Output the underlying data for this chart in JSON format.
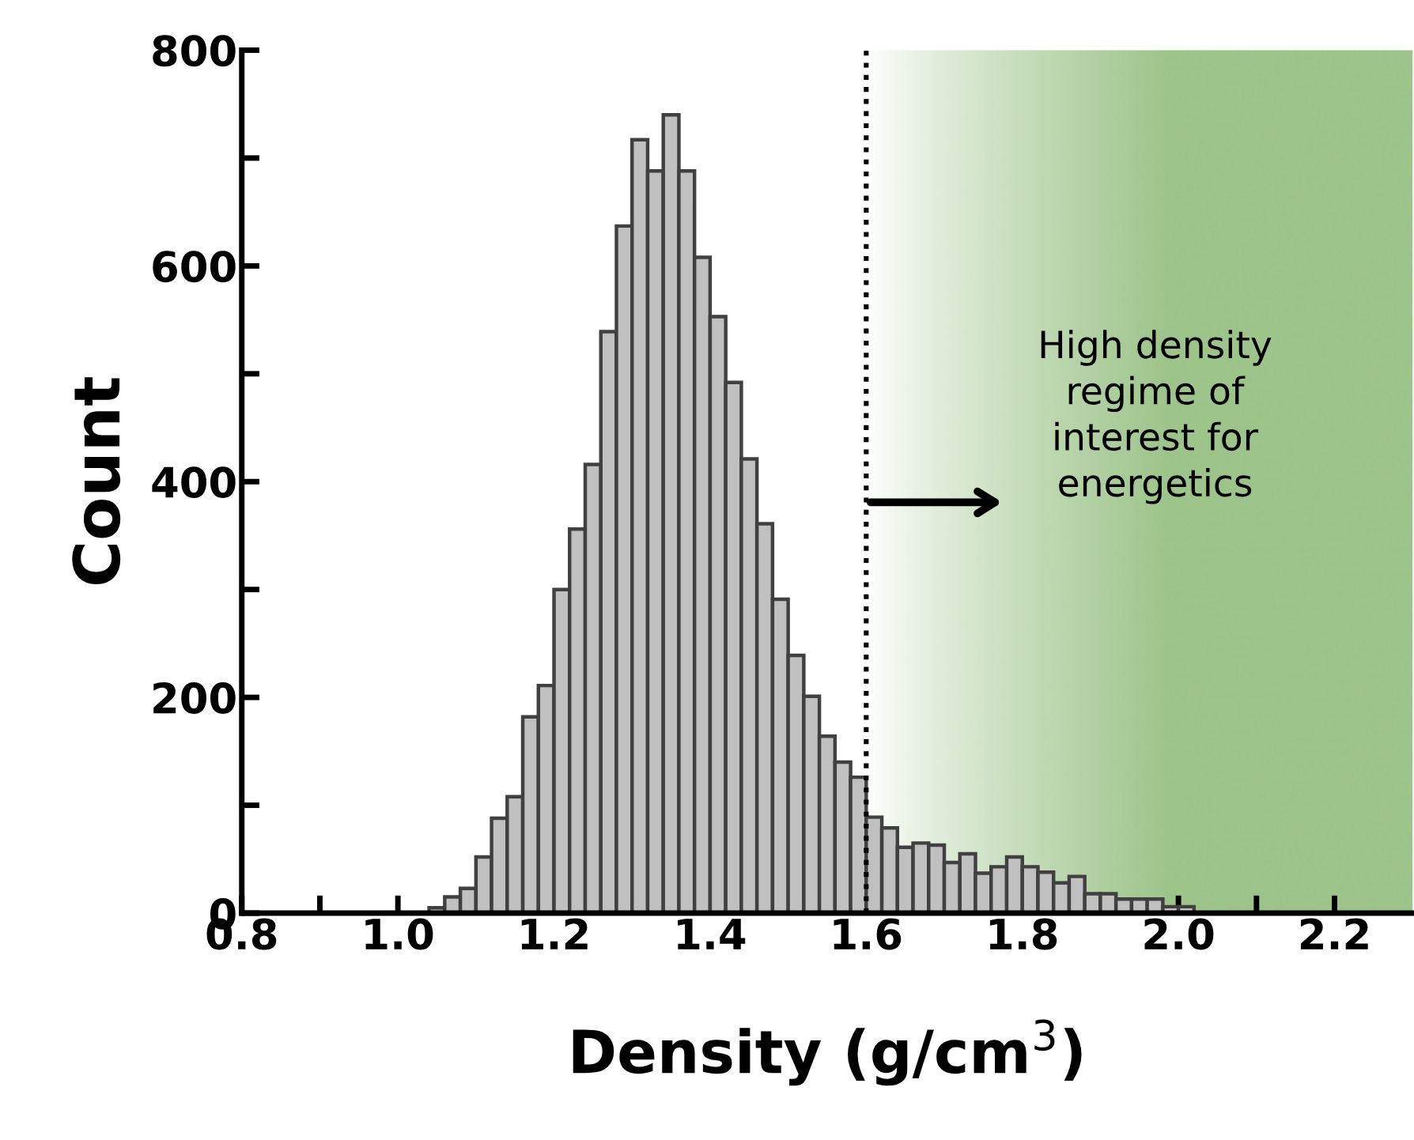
{
  "chart_data": {
    "type": "histogram",
    "xlabel": "Density (g/cm$^{3}$)",
    "ylabel": "Count",
    "bins": [
      1.04,
      1.06,
      1.08,
      1.1,
      1.12,
      1.14,
      1.16,
      1.18,
      1.2,
      1.22,
      1.24,
      1.26,
      1.28,
      1.3,
      1.32,
      1.34,
      1.36,
      1.38,
      1.4,
      1.42,
      1.44,
      1.46,
      1.48,
      1.5,
      1.52,
      1.54,
      1.56,
      1.58,
      1.6,
      1.62,
      1.64,
      1.66,
      1.68,
      1.7,
      1.72,
      1.74,
      1.76,
      1.78,
      1.8,
      1.82,
      1.84,
      1.86,
      1.88,
      1.9,
      1.92,
      1.94,
      1.96,
      1.98,
      2.0,
      2.02
    ],
    "values": [
      5,
      15,
      23,
      52,
      88,
      108,
      182,
      211,
      300,
      356,
      416,
      539,
      637,
      717,
      688,
      740,
      688,
      608,
      553,
      492,
      421,
      361,
      291,
      239,
      201,
      164,
      140,
      126,
      89,
      79,
      61,
      65,
      63,
      47,
      55,
      37,
      43,
      52,
      43,
      38,
      28,
      34,
      18,
      18,
      13,
      13,
      13,
      6,
      6
    ],
    "color": "#c0c0c0",
    "xlim": [
      0.8,
      2.3
    ],
    "xticks": [
      {
        "value": 0.8,
        "label": "0.8"
      },
      {
        "value": 0.9,
        "label": null
      },
      {
        "value": 1.0,
        "label": "1.0"
      },
      {
        "value": 1.1,
        "label": null
      },
      {
        "value": 1.2,
        "label": "1.2"
      },
      {
        "value": 1.3,
        "label": null
      },
      {
        "value": 1.4,
        "label": "1.4"
      },
      {
        "value": 1.5,
        "label": null
      },
      {
        "value": 1.6,
        "label": "1.6"
      },
      {
        "value": 1.7,
        "label": null
      },
      {
        "value": 1.8,
        "label": "1.8"
      },
      {
        "value": 1.9,
        "label": null
      },
      {
        "value": 2.0,
        "label": "2.0"
      },
      {
        "value": 2.1,
        "label": null
      },
      {
        "value": 2.2,
        "label": "2.2"
      }
    ],
    "ylim": [
      0,
      800
    ],
    "yticks": [
      0,
      {
        "value": 100,
        "label": null
      },
      200,
      {
        "value": 300,
        "label": null
      },
      400,
      {
        "value": 500,
        "label": null
      },
      600,
      {
        "value": 700,
        "label": null
      },
      800
    ],
    "grid": false,
    "bands": [
      {
        "axis": "x",
        "from": 1.6,
        "to": 2.3,
        "color": "#9dc48a"
      }
    ],
    "ref_lines": [
      {
        "axis": "x",
        "value": 1.6,
        "line_style": "dotted"
      }
    ],
    "annotations": [
      "High density\nregime of\ninterest for\nenergetics"
    ]
  }
}
